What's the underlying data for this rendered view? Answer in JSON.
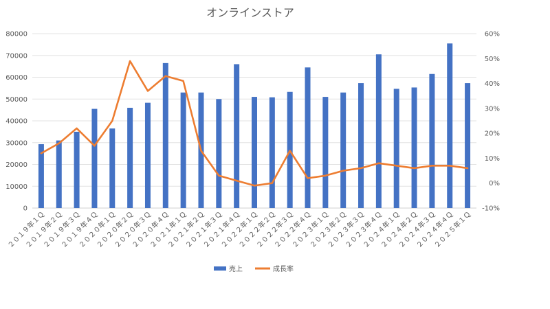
{
  "chart_data": {
    "type": "bar",
    "title": "オンラインストア",
    "categories": [
      "２０１９年１Ｑ",
      "２０１９年２Ｑ",
      "２０１９年３Ｑ",
      "２０１９年４Ｑ",
      "２０２０年１Ｑ",
      "２０２０年２Ｑ",
      "２０２０年３Ｑ",
      "２０２０年４Ｑ",
      "２０２１年１Ｑ",
      "２０２１年２Ｑ",
      "２０２１年３Ｑ",
      "２０２１年４Ｑ",
      "２０２２年１Ｑ",
      "２０２２年２Ｑ",
      "２０２２年３Ｑ",
      "２０２２年４Ｑ",
      "２０２３年１Ｑ",
      "２０２３年２Ｑ",
      "２０２３年３Ｑ",
      "２０２３年４Ｑ",
      "２０２４年１Ｑ",
      "２０２４年２Ｑ",
      "２０２４年３Ｑ",
      "２０２４年４Ｑ",
      "２０２５年１Ｑ"
    ],
    "series": [
      {
        "name": "売上",
        "type": "bar",
        "axis": "left",
        "color": "#4472C4",
        "values": [
          29300,
          31000,
          35000,
          45500,
          36500,
          46000,
          48300,
          66500,
          53000,
          53000,
          50000,
          66000,
          51000,
          50800,
          53300,
          64500,
          51000,
          53000,
          57300,
          70500,
          54700,
          55300,
          61500,
          75500,
          57300
        ]
      },
      {
        "name": "成長率",
        "type": "line",
        "axis": "right",
        "color": "#ED7D31",
        "values": [
          0.12,
          0.16,
          0.22,
          0.15,
          0.25,
          0.49,
          0.37,
          0.43,
          0.41,
          0.13,
          0.03,
          0.01,
          -0.01,
          0.0,
          0.13,
          0.02,
          0.03,
          0.05,
          0.06,
          0.08,
          0.07,
          0.06,
          0.07,
          0.07,
          0.06
        ]
      }
    ],
    "y_left": {
      "min": 0,
      "max": 80000,
      "step": 10000,
      "tick_labels": [
        "0",
        "10000",
        "20000",
        "30000",
        "40000",
        "50000",
        "60000",
        "70000",
        "80000"
      ]
    },
    "y_right": {
      "min": -0.1,
      "max": 0.6,
      "step": 0.1,
      "tick_labels": [
        "-10%",
        "0%",
        "10%",
        "20%",
        "30%",
        "40%",
        "50%",
        "60%"
      ]
    },
    "grid": true,
    "legend_position": "bottom"
  }
}
